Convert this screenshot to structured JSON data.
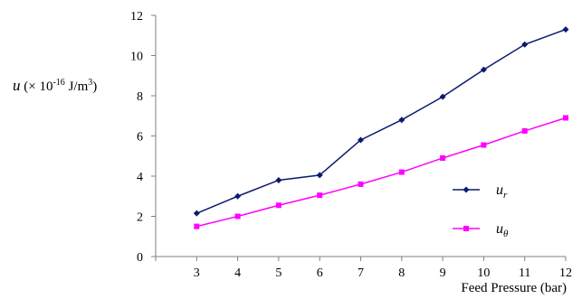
{
  "chart_data": {
    "type": "line",
    "x": [
      3,
      4,
      5,
      6,
      7,
      8,
      9,
      10,
      11,
      12
    ],
    "series": [
      {
        "name": "u_r",
        "label_main": "u",
        "label_sub": "r",
        "color": "#0b1a6e",
        "marker": "diamond",
        "values": [
          2.15,
          3.0,
          3.8,
          4.05,
          5.8,
          6.8,
          7.95,
          9.3,
          10.55,
          11.3
        ]
      },
      {
        "name": "u_θ",
        "label_main": "u",
        "label_sub": "θ",
        "color": "#ff00ff",
        "marker": "square",
        "values": [
          1.5,
          2.0,
          2.55,
          3.05,
          3.6,
          4.2,
          4.9,
          5.55,
          6.25,
          6.9
        ]
      }
    ],
    "xlabel": "Feed Pressure (bar)",
    "ylabel": {
      "symbol": "u",
      "prefix": " (× 10",
      "exponent": "-16",
      "unit": " J/m",
      "unit_exponent": "3",
      "suffix": ")"
    },
    "ylim": [
      0,
      12
    ],
    "yticks": [
      0,
      2,
      4,
      6,
      8,
      10,
      12
    ],
    "xlim": [
      2,
      12
    ],
    "grid": false,
    "legend_position": "right"
  }
}
